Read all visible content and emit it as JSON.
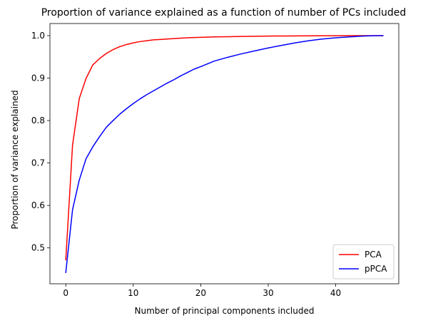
{
  "chart_data": {
    "type": "line",
    "title": "Proportion of variance explained as a function of number of PCs included",
    "xlabel": "Number of principal components included",
    "ylabel": "Proportion of variance explained",
    "xlim": [
      -2.35,
      49.35
    ],
    "ylim": [
      0.4155,
      1.0285
    ],
    "xticks": [
      0,
      10,
      20,
      30,
      40
    ],
    "yticks": [
      0.5,
      0.6,
      0.7,
      0.8,
      0.9,
      1.0
    ],
    "grid": false,
    "legend": "lower-right",
    "series": [
      {
        "name": "PCA",
        "color": "#ff0000",
        "x": [
          0,
          1,
          2,
          3,
          4,
          5,
          6,
          7,
          8,
          9,
          10,
          11,
          12,
          13,
          14,
          15,
          16,
          17,
          18,
          19,
          20,
          22,
          24,
          26,
          28,
          30,
          32,
          34,
          36,
          38,
          40,
          42,
          44,
          46,
          47
        ],
        "y": [
          0.472,
          0.742,
          0.852,
          0.899,
          0.931,
          0.946,
          0.958,
          0.967,
          0.974,
          0.979,
          0.983,
          0.986,
          0.988,
          0.99,
          0.991,
          0.992,
          0.993,
          0.994,
          0.995,
          0.9955,
          0.996,
          0.997,
          0.9975,
          0.998,
          0.9985,
          0.999,
          0.9992,
          0.9994,
          0.9996,
          0.9997,
          0.9998,
          0.9999,
          0.99995,
          1.0,
          1.0
        ]
      },
      {
        "name": "pPCA",
        "color": "#0000ff",
        "x": [
          0,
          1,
          2,
          3,
          4,
          5,
          6,
          7,
          8,
          9,
          10,
          11,
          12,
          13,
          14,
          15,
          16,
          17,
          18,
          19,
          20,
          22,
          24,
          26,
          28,
          30,
          32,
          34,
          36,
          38,
          40,
          42,
          44,
          46,
          47
        ],
        "y": [
          0.442,
          0.59,
          0.66,
          0.71,
          0.738,
          0.762,
          0.784,
          0.8,
          0.815,
          0.828,
          0.84,
          0.851,
          0.861,
          0.87,
          0.879,
          0.888,
          0.896,
          0.905,
          0.913,
          0.921,
          0.927,
          0.94,
          0.949,
          0.957,
          0.964,
          0.971,
          0.977,
          0.983,
          0.988,
          0.992,
          0.995,
          0.997,
          0.999,
          1.0,
          1.0
        ]
      }
    ]
  }
}
